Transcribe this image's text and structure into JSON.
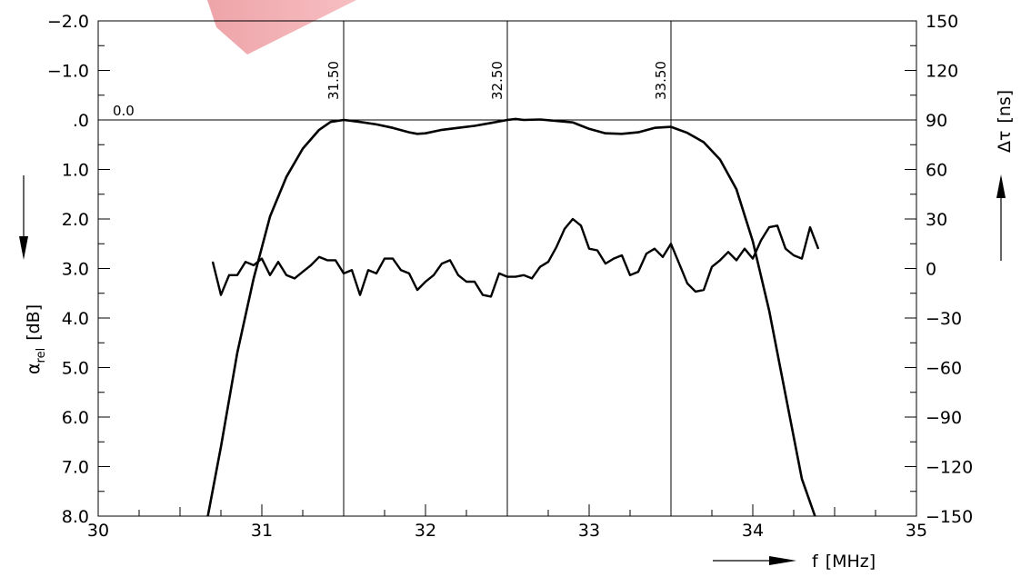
{
  "chart_data": {
    "type": "line",
    "x_axis": {
      "label": "f",
      "unit": "[MHz]",
      "range": [
        30,
        35
      ],
      "ticks": [
        30,
        31,
        32,
        33,
        34,
        35
      ],
      "tick_labels": [
        "30",
        "31",
        "32",
        "33",
        "34",
        "35"
      ]
    },
    "y_axis_left": {
      "label": "α",
      "label_subscript": "rel",
      "unit": "[dB]",
      "range": [
        -2.0,
        8.0
      ],
      "inverted": true,
      "ticks": [
        -2.0,
        -1.0,
        0.0,
        1.0,
        2.0,
        3.0,
        4.0,
        5.0,
        6.0,
        7.0,
        8.0
      ],
      "tick_labels": [
        "−2.0",
        "−1.0",
        ".0",
        "1.0",
        "2.0",
        "3.0",
        "4.0",
        "5.0",
        "6.0",
        "7.0",
        "8.0"
      ]
    },
    "y_axis_right": {
      "label": "Δτ",
      "unit": "[ns]",
      "range": [
        -150,
        150
      ],
      "ticks": [
        150,
        120,
        90,
        60,
        30,
        0,
        -30,
        -60,
        -90,
        -120,
        -150
      ],
      "tick_labels": [
        "150",
        "120",
        "90",
        "60",
        "30",
        "0",
        "−30",
        "−60",
        "−90",
        "−120",
        "−150"
      ]
    },
    "reference_line": {
      "value": 0.0,
      "label": "0.0"
    },
    "vertical_markers": [
      {
        "x": 31.5,
        "label": "31.50"
      },
      {
        "x": 32.5,
        "label": "32.50"
      },
      {
        "x": 33.5,
        "label": "33.50"
      }
    ],
    "grid": false,
    "series": [
      {
        "axis": "left",
        "x": [
          30.67,
          30.75,
          30.85,
          30.95,
          31.05,
          31.15,
          31.25,
          31.35,
          31.42,
          31.5,
          31.6,
          31.7,
          31.8,
          31.9,
          31.95,
          32.0,
          32.1,
          32.2,
          32.3,
          32.4,
          32.5,
          32.55,
          32.6,
          32.7,
          32.8,
          32.9,
          33.0,
          33.1,
          33.2,
          33.3,
          33.4,
          33.5,
          33.6,
          33.7,
          33.8,
          33.9,
          34.0,
          34.1,
          34.2,
          34.3,
          34.38
        ],
        "values": [
          8.0,
          6.6,
          4.7,
          3.2,
          1.95,
          1.15,
          0.58,
          0.2,
          0.04,
          0.0,
          0.04,
          0.09,
          0.16,
          0.25,
          0.28,
          0.27,
          0.2,
          0.16,
          0.12,
          0.06,
          0.0,
          -0.02,
          0.0,
          -0.01,
          0.02,
          0.05,
          0.18,
          0.27,
          0.28,
          0.25,
          0.16,
          0.14,
          0.26,
          0.45,
          0.8,
          1.4,
          2.45,
          3.85,
          5.55,
          7.25,
          8.0
        ]
      },
      {
        "axis": "right",
        "x": [
          30.7,
          30.75,
          30.8,
          30.85,
          30.9,
          30.95,
          31.0,
          31.05,
          31.1,
          31.15,
          31.2,
          31.25,
          31.3,
          31.35,
          31.4,
          31.45,
          31.5,
          31.55,
          31.6,
          31.65,
          31.7,
          31.75,
          31.8,
          31.85,
          31.9,
          31.95,
          32.0,
          32.05,
          32.1,
          32.15,
          32.2,
          32.25,
          32.3,
          32.35,
          32.4,
          32.45,
          32.5,
          32.55,
          32.6,
          32.65,
          32.7,
          32.75,
          32.8,
          32.85,
          32.9,
          32.95,
          33.0,
          33.05,
          33.1,
          33.15,
          33.2,
          33.25,
          33.3,
          33.35,
          33.4,
          33.45,
          33.5,
          33.55,
          33.6,
          33.65,
          33.7,
          33.75,
          33.8,
          33.85,
          33.9,
          33.95,
          34.0,
          34.05,
          34.1,
          34.15,
          34.2,
          34.25,
          34.3,
          34.35,
          34.4
        ],
        "values": [
          4,
          -16,
          -4,
          -4,
          4,
          2,
          6,
          -4,
          4,
          -4,
          -6,
          -2,
          2,
          7,
          5,
          5,
          -3,
          -1,
          -16,
          -1,
          -3,
          6,
          6,
          -1,
          -3,
          -13,
          -8,
          -4,
          3,
          5,
          -4,
          -8,
          -8,
          -16,
          -17,
          -3,
          -5,
          -5,
          -4,
          -6,
          1,
          4,
          13,
          24,
          30,
          26,
          12,
          11,
          3,
          6,
          8,
          -4,
          -2,
          9,
          12,
          7,
          15,
          3,
          -9,
          -14,
          -13,
          1,
          5,
          10,
          5,
          12,
          6,
          17,
          25,
          26,
          12,
          8,
          6,
          25,
          12
        ]
      }
    ]
  }
}
